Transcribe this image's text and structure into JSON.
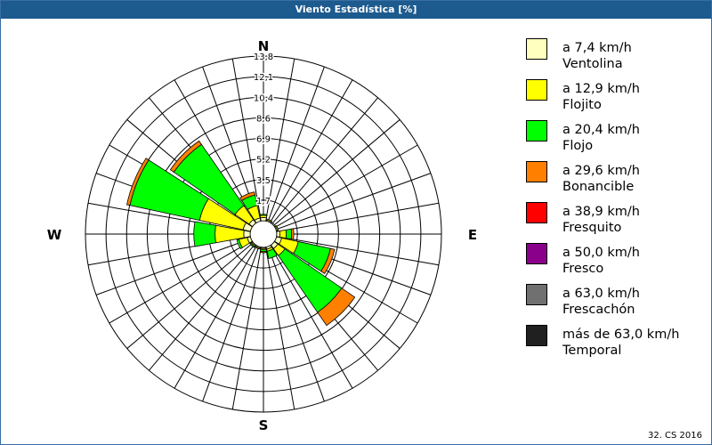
{
  "window": {
    "title": "Viento Estadística [%]"
  },
  "footer": "32. CS 2016",
  "chart_data": {
    "type": "wind-rose",
    "title": "Viento Estadística [%]",
    "directions": [
      "N",
      "NNE",
      "NE",
      "ENE",
      "E",
      "ESE",
      "SE",
      "SSE",
      "S",
      "SSW",
      "SW",
      "WSW",
      "W",
      "WNW",
      "NW",
      "NNW"
    ],
    "compass_labels": {
      "N": "N",
      "E": "E",
      "S": "S",
      "W": "W"
    },
    "radial_ticks": [
      "1,7",
      "3,5",
      "5,2",
      "6,9",
      "8,6",
      "10,4",
      "12,1",
      "13,8"
    ],
    "rmax": 15.5,
    "classes": [
      {
        "label": "a 7,4 km/h",
        "name": "Ventolina",
        "color": "#ffffc0"
      },
      {
        "label": "a 12,9 km/h",
        "name": "Flojito",
        "color": "#ffff00"
      },
      {
        "label": "a 20,4 km/h",
        "name": "Flojo",
        "color": "#00ff00"
      },
      {
        "label": "a 29,6 km/h",
        "name": "Bonancible",
        "color": "#ff8000"
      },
      {
        "label": "a 38,9 km/h",
        "name": "Fresquito",
        "color": "#ff0000"
      },
      {
        "label": "a 50,0 km/h",
        "name": "Fresco",
        "color": "#8b008b"
      },
      {
        "label": "a 63,0 km/h",
        "name": "Frescachón",
        "color": "#707070"
      },
      {
        "label": "más de 63,0 km/h",
        "name": "Temporal",
        "color": "#202020"
      }
    ],
    "series": [
      {
        "name": "a 7,4 km/h",
        "values": [
          0.3,
          0.1,
          0.1,
          0.1,
          0.3,
          0.5,
          0.4,
          0.2,
          0.1,
          0.1,
          0.1,
          0.3,
          0.6,
          0.7,
          0.4,
          0.3
        ]
      },
      {
        "name": "a 12,9 km/h",
        "values": [
          0.2,
          0.1,
          0.0,
          0.1,
          0.6,
          1.6,
          0.8,
          0.2,
          0.1,
          0.1,
          0.1,
          0.8,
          2.7,
          4.2,
          1.6,
          1.2
        ]
      },
      {
        "name": "a 20,4 km/h",
        "values": [
          0.1,
          0.0,
          0.0,
          0.0,
          0.5,
          3.1,
          6.5,
          0.7,
          0.2,
          0.0,
          0.1,
          0.2,
          2.0,
          6.7,
          7.0,
          1.0
        ]
      },
      {
        "name": "a 29,6 km/h",
        "values": [
          0.0,
          0.0,
          0.0,
          0.0,
          0.2,
          0.4,
          1.5,
          0.0,
          0.1,
          0.0,
          0.0,
          0.0,
          0.0,
          0.3,
          0.4,
          0.3
        ]
      },
      {
        "name": "a 38,9 km/h",
        "values": [
          0,
          0,
          0,
          0,
          0,
          0,
          0,
          0,
          0,
          0,
          0,
          0,
          0,
          0,
          0,
          0
        ]
      },
      {
        "name": "a 50,0 km/h",
        "values": [
          0,
          0,
          0,
          0,
          0,
          0,
          0,
          0,
          0,
          0,
          0,
          0,
          0,
          0,
          0,
          0
        ]
      },
      {
        "name": "a 63,0 km/h",
        "values": [
          0,
          0,
          0,
          0,
          0,
          0,
          0,
          0,
          0,
          0,
          0,
          0,
          0,
          0,
          0,
          0
        ]
      },
      {
        "name": "más de 63,0 km/h",
        "values": [
          0,
          0,
          0,
          0,
          0,
          0,
          0,
          0,
          0,
          0,
          0,
          0,
          0,
          0,
          0,
          0
        ]
      }
    ]
  }
}
